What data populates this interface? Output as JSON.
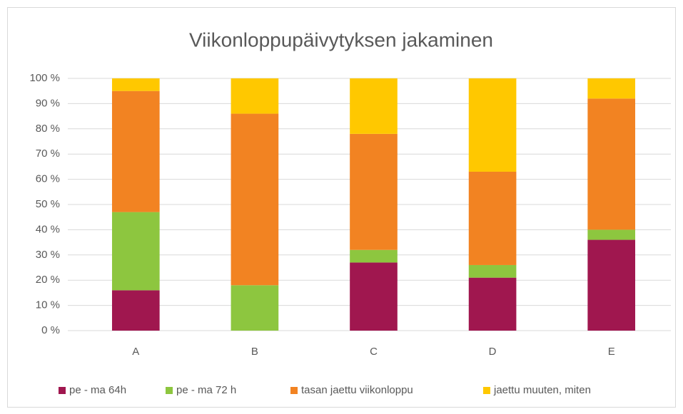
{
  "chart_data": {
    "type": "stacked-bar",
    "title": "Viikonloppupäivytyksen jakaminen",
    "categories": [
      "A",
      "B",
      "C",
      "D",
      "E"
    ],
    "series": [
      {
        "name": "pe - ma 64h",
        "color": "#a0174f",
        "values": [
          16,
          0,
          27,
          21,
          36
        ]
      },
      {
        "name": "pe - ma 72 h",
        "color": "#8dc63f",
        "values": [
          31,
          18,
          5,
          5,
          4
        ]
      },
      {
        "name": "tasan jaettu viikonloppu",
        "color": "#f28322",
        "values": [
          48,
          68,
          46,
          37,
          52
        ]
      },
      {
        "name": "jaettu muuten, miten",
        "color": "#ffc800",
        "values": [
          5,
          14,
          22,
          37,
          8
        ]
      }
    ],
    "ylim": [
      0,
      100
    ],
    "yticks": [
      {
        "value": 0,
        "label": "0 %"
      },
      {
        "value": 10,
        "label": "10 %"
      },
      {
        "value": 20,
        "label": "20 %"
      },
      {
        "value": 30,
        "label": "30 %"
      },
      {
        "value": 40,
        "label": "40 %"
      },
      {
        "value": 50,
        "label": "50 %"
      },
      {
        "value": 60,
        "label": "60 %"
      },
      {
        "value": 70,
        "label": "70 %"
      },
      {
        "value": 80,
        "label": "80 %"
      },
      {
        "value": 90,
        "label": "90 %"
      },
      {
        "value": 100,
        "label": "100 %"
      }
    ],
    "grid": true,
    "legend": "bottom"
  }
}
